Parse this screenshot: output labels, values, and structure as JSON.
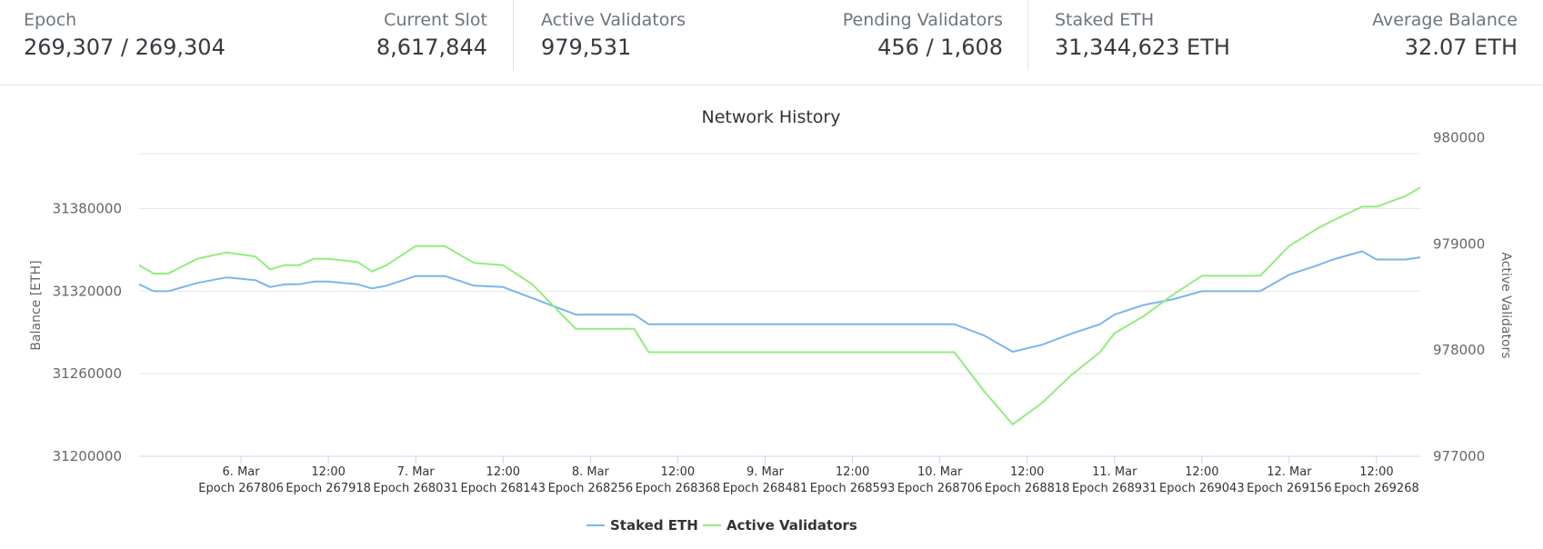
{
  "stats": {
    "epoch": {
      "label": "Epoch",
      "value": "269,307 / 269,304"
    },
    "current_slot": {
      "label": "Current Slot",
      "value": "8,617,844"
    },
    "active_validators": {
      "label": "Active Validators",
      "value": "979,531"
    },
    "pending_validators": {
      "label": "Pending Validators",
      "value": "456 / 1,608"
    },
    "staked_eth": {
      "label": "Staked ETH",
      "value": "31,344,623 ETH"
    },
    "average_balance": {
      "label": "Average Balance",
      "value": "32.07 ETH"
    }
  },
  "colors": {
    "staked": "#7cb5ec",
    "validators": "#90ed7d"
  },
  "chart_data": {
    "type": "line",
    "title": "Network History",
    "ylabel_left": "Balance [ETH]",
    "ylabel_right": "Active Validators",
    "y_left_range": [
      31200000,
      31420000
    ],
    "y_right_range": [
      977000,
      979850
    ],
    "y_left_ticks": [
      "31200000",
      "31260000",
      "31320000",
      "31380000"
    ],
    "y_right_ticks": [
      "977000",
      "978000",
      "979000",
      "980000"
    ],
    "x_ticks": [
      {
        "date": "6. Mar",
        "epoch": "Epoch 267806"
      },
      {
        "date": "12:00",
        "epoch": "Epoch 267918"
      },
      {
        "date": "7. Mar",
        "epoch": "Epoch 268031"
      },
      {
        "date": "12:00",
        "epoch": "Epoch 268143"
      },
      {
        "date": "8. Mar",
        "epoch": "Epoch 268256"
      },
      {
        "date": "12:00",
        "epoch": "Epoch 268368"
      },
      {
        "date": "9. Mar",
        "epoch": "Epoch 268481"
      },
      {
        "date": "12:00",
        "epoch": "Epoch 268593"
      },
      {
        "date": "10. Mar",
        "epoch": "Epoch 268706"
      },
      {
        "date": "12:00",
        "epoch": "Epoch 268818"
      },
      {
        "date": "11. Mar",
        "epoch": "Epoch 268931"
      },
      {
        "date": "12:00",
        "epoch": "Epoch 269043"
      },
      {
        "date": "12. Mar",
        "epoch": "Epoch 269156"
      },
      {
        "date": "12:00",
        "epoch": "Epoch 269268"
      }
    ],
    "x_range_hours": [
      -14,
      162
    ],
    "legend_position": "bottom-center",
    "series": [
      {
        "name": "Staked ETH",
        "axis": "left",
        "points": [
          [
            -14,
            31325000
          ],
          [
            -12,
            31320000
          ],
          [
            -10,
            31320000
          ],
          [
            -6,
            31326000
          ],
          [
            -2,
            31330000
          ],
          [
            2,
            31328000
          ],
          [
            4,
            31323000
          ],
          [
            6,
            31325000
          ],
          [
            8,
            31325000
          ],
          [
            10,
            31327000
          ],
          [
            12,
            31327000
          ],
          [
            16,
            31325000
          ],
          [
            18,
            31322000
          ],
          [
            20,
            31324000
          ],
          [
            24,
            31331000
          ],
          [
            28,
            31331000
          ],
          [
            32,
            31324000
          ],
          [
            36,
            31323000
          ],
          [
            40,
            31315000
          ],
          [
            46,
            31303000
          ],
          [
            54,
            31303000
          ],
          [
            56,
            31296000
          ],
          [
            70,
            31296000
          ],
          [
            84,
            31296000
          ],
          [
            88,
            31296000
          ],
          [
            98,
            31296000
          ],
          [
            102,
            31288000
          ],
          [
            106,
            31276000
          ],
          [
            110,
            31281000
          ],
          [
            114,
            31289000
          ],
          [
            118,
            31296000
          ],
          [
            120,
            31303000
          ],
          [
            124,
            31310000
          ],
          [
            128,
            31314000
          ],
          [
            132,
            31320000
          ],
          [
            136,
            31320000
          ],
          [
            140,
            31320000
          ],
          [
            144,
            31332000
          ],
          [
            148,
            31339000
          ],
          [
            150,
            31343000
          ],
          [
            154,
            31349000
          ],
          [
            156,
            31343000
          ],
          [
            160,
            31343000
          ],
          [
            162,
            31344623
          ]
        ]
      },
      {
        "name": "Active Validators",
        "axis": "right",
        "points": [
          [
            -14,
            978800
          ],
          [
            -12,
            978720
          ],
          [
            -10,
            978720
          ],
          [
            -6,
            978860
          ],
          [
            -2,
            978920
          ],
          [
            2,
            978880
          ],
          [
            4,
            978760
          ],
          [
            6,
            978800
          ],
          [
            8,
            978800
          ],
          [
            10,
            978860
          ],
          [
            12,
            978860
          ],
          [
            16,
            978830
          ],
          [
            18,
            978740
          ],
          [
            20,
            978800
          ],
          [
            24,
            978980
          ],
          [
            28,
            978980
          ],
          [
            32,
            978820
          ],
          [
            36,
            978800
          ],
          [
            40,
            978620
          ],
          [
            46,
            978200
          ],
          [
            54,
            978200
          ],
          [
            56,
            977980
          ],
          [
            70,
            977980
          ],
          [
            84,
            977980
          ],
          [
            88,
            977980
          ],
          [
            98,
            977980
          ],
          [
            102,
            977620
          ],
          [
            106,
            977300
          ],
          [
            110,
            977500
          ],
          [
            114,
            977760
          ],
          [
            118,
            977980
          ],
          [
            120,
            978160
          ],
          [
            124,
            978320
          ],
          [
            128,
            978520
          ],
          [
            132,
            978700
          ],
          [
            136,
            978700
          ],
          [
            140,
            978700
          ],
          [
            144,
            978980
          ],
          [
            148,
            979150
          ],
          [
            150,
            979220
          ],
          [
            154,
            979350
          ],
          [
            156,
            979350
          ],
          [
            160,
            979450
          ],
          [
            162,
            979531
          ]
        ]
      }
    ]
  }
}
